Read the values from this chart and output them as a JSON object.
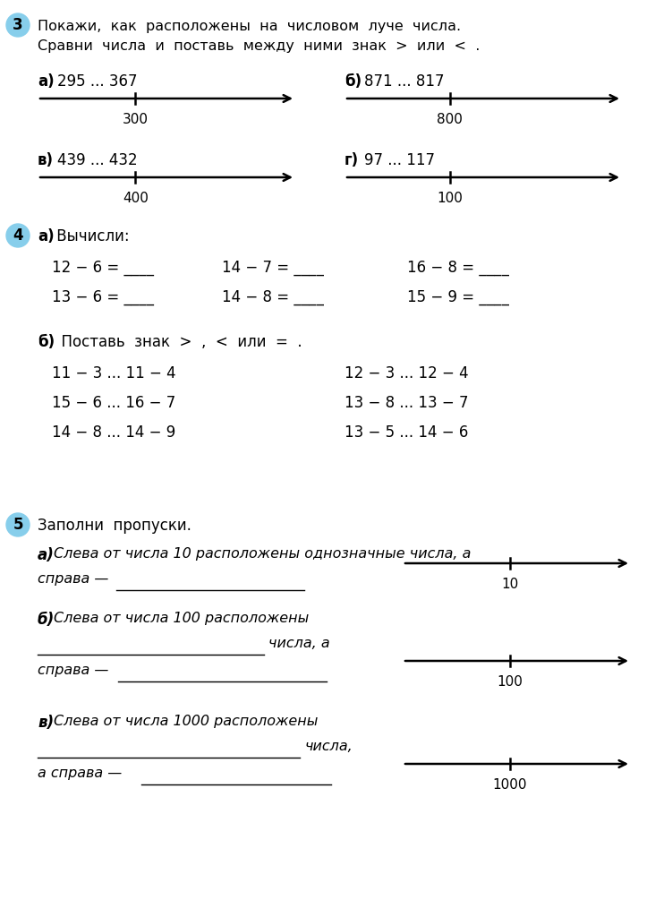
{
  "bg_color": "#ffffff",
  "circle_color": "#87CEEB",
  "task3": {
    "number": "3",
    "instruction_line1": "Покажи,  как  расположены  на  числовом  луче  числа.",
    "instruction_line2": "Сравни  числа  и  поставь  между  ними  знак  >  или  <  .",
    "items": [
      {
        "label": "а)",
        "expr": "295 ... 367",
        "tick_label": "300",
        "col": 0
      },
      {
        "label": "б)",
        "expr": "871 ... 817",
        "tick_label": "800",
        "col": 1
      },
      {
        "label": "в)",
        "expr": "439 ... 432",
        "tick_label": "400",
        "col": 0
      },
      {
        "label": "г)",
        "expr": "97 ... 117",
        "tick_label": "100",
        "col": 1
      }
    ]
  },
  "task4": {
    "number": "4",
    "part_a_label_bold": "а)",
    "part_a_label_normal": " Вычисли:",
    "calc_rows": [
      [
        "12 − 6 = ____",
        "14 − 7 = ____",
        "16 − 8 = ____"
      ],
      [
        "13 − 6 = ____",
        "14 − 8 = ____",
        "15 − 9 = ____"
      ]
    ],
    "part_b_label_bold": "б)",
    "part_b_label_normal": "  Поставь  знак  >  ,  <  или  =  .",
    "compare_rows": [
      [
        "11 − 3 ... 11 − 4",
        "12 − 3 ... 12 − 4"
      ],
      [
        "15 − 6 ... 16 − 7",
        "13 − 8 ... 13 − 7"
      ],
      [
        "14 − 8 ... 14 − 9",
        "13 − 5 ... 14 − 6"
      ]
    ]
  },
  "task5": {
    "number": "5",
    "instruction": "Заполни  пропуски.",
    "item_a_label": "а)",
    "item_a_line1": "Слева от числа 10 расположены однозначные числа, а",
    "item_a_line2": "справа —",
    "item_a_tick": "10",
    "item_b_label": "б)",
    "item_b_line1": "Слева от числа 100 расположены",
    "item_b_line2": "числа, а",
    "item_b_line3": "справа —",
    "item_b_tick": "100",
    "item_c_label": "в)",
    "item_c_line1": "Слева от числа 1000 расположены",
    "item_c_line2": "числа,",
    "item_c_line3": "а справа —",
    "item_c_tick": "1000"
  }
}
